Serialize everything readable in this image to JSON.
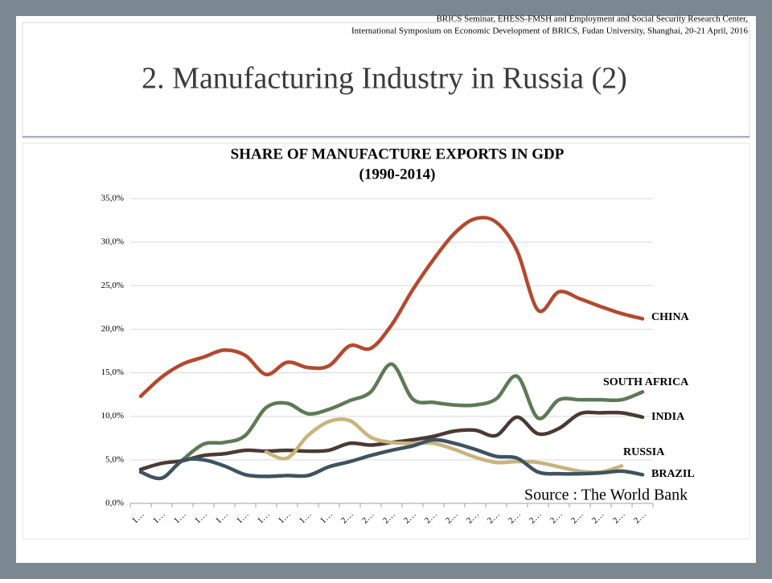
{
  "header": {
    "lines": [
      "BRICS Seminar, EHESS-FMSH and Employment and Social Security Research Center,",
      "International Symposium on Economic Development of BRICS, Fudan University, Shanghai, 20-21 April, 2016"
    ]
  },
  "slide_title": "2. Manufacturing Industry in Russia (2)",
  "source": "Source : The World Bank",
  "chart_data": {
    "type": "line",
    "title": "SHARE OF MANUFACTURE EXPORTS IN GDP",
    "subtitle": "(1990-2014)",
    "categories": [
      "1…",
      "1…",
      "1…",
      "1…",
      "1…",
      "1…",
      "1…",
      "1…",
      "1…",
      "1…",
      "2…",
      "2…",
      "2…",
      "2…",
      "2…",
      "2…",
      "2…",
      "2…",
      "2…",
      "2…",
      "2…",
      "2…",
      "2…",
      "2…",
      "2…"
    ],
    "ylim": [
      0,
      35
    ],
    "yticks": [
      {
        "value": 0,
        "label": "0,0%"
      },
      {
        "value": 5,
        "label": "5,0%"
      },
      {
        "value": 10,
        "label": "10,0%"
      },
      {
        "value": 15,
        "label": "15,0%"
      },
      {
        "value": 20,
        "label": "20,0%"
      },
      {
        "value": 25,
        "label": "25,0%"
      },
      {
        "value": 30,
        "label": "30,0%"
      },
      {
        "value": 35,
        "label": "35,0%"
      }
    ],
    "grid": true,
    "series": [
      {
        "name": "CHINA",
        "color": "#b3492f",
        "values": [
          12.3,
          14.5,
          16,
          16.8,
          17.6,
          17,
          14.8,
          16.2,
          15.6,
          15.8,
          18.1,
          17.8,
          20.5,
          24.5,
          28,
          31,
          32.7,
          32.3,
          29,
          22.2,
          24.3,
          23.5,
          22.6,
          21.8,
          21.2
        ]
      },
      {
        "name": "SOUTH AFRICA",
        "color": "#5e7a55",
        "values": [
          null,
          null,
          5,
          6.8,
          7,
          7.8,
          11,
          11.5,
          10.3,
          10.8,
          11.8,
          12.8,
          16,
          12,
          11.6,
          11.3,
          11.3,
          12,
          14.6,
          9.8,
          11.9,
          11.9,
          11.9,
          11.9,
          12.8
        ]
      },
      {
        "name": "INDIA",
        "color": "#4a3a33",
        "values": [
          3.9,
          4.6,
          4.9,
          5.5,
          5.7,
          6.1,
          6,
          6.1,
          6,
          6.1,
          6.9,
          6.7,
          7,
          7.3,
          7.7,
          8.3,
          8.4,
          7.8,
          9.9,
          8,
          8.6,
          10.3,
          10.4,
          10.4,
          9.9
        ]
      },
      {
        "name": "RUSSIA",
        "color": "#c8b47a",
        "values": [
          null,
          null,
          null,
          null,
          null,
          null,
          5.9,
          5.2,
          7.8,
          9.4,
          9.5,
          7.6,
          7,
          6.9,
          6.9,
          6.2,
          5.3,
          4.7,
          4.8,
          4.7,
          4.2,
          3.7,
          3.6,
          4.3,
          null
        ]
      },
      {
        "name": "BRAZIL",
        "color": "#3f5262",
        "values": [
          3.6,
          2.9,
          4.9,
          5,
          4.3,
          3.3,
          3.1,
          3.2,
          3.2,
          4.2,
          4.8,
          5.5,
          6.1,
          6.6,
          7.3,
          6.9,
          6.2,
          5.4,
          5.2,
          3.6,
          3.4,
          3.4,
          3.5,
          3.7,
          3.3
        ]
      }
    ]
  }
}
